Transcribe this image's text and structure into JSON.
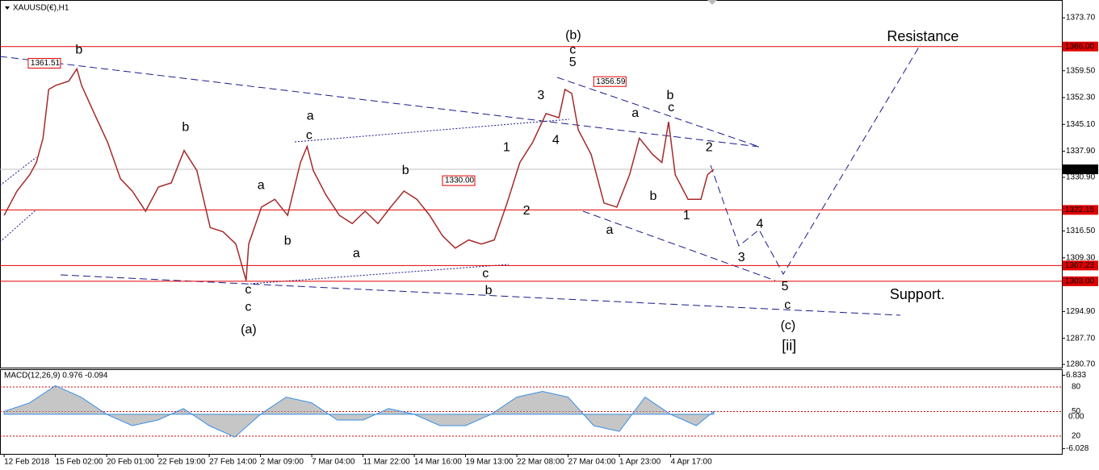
{
  "chart_data": [
    {
      "type": "line",
      "title": "XAUUSD(€),H1",
      "color": "#a52a2a",
      "xlim": [
        -0.08,
        20.63
      ],
      "ylim": [
        1280.05,
        1377.4
      ],
      "xticks": [
        {
          "value": 0,
          "label": "12 Feb 2018"
        },
        {
          "value": 1,
          "label": "15 Feb 02:00"
        },
        {
          "value": 2,
          "label": "20 Feb 01:00"
        },
        {
          "value": 3,
          "label": "22 Feb 19:00"
        },
        {
          "value": 4,
          "label": "27 Feb 14:00"
        },
        {
          "value": 5,
          "label": "2 Mar 09:00"
        },
        {
          "value": 6,
          "label": "7 Mar 04:00"
        },
        {
          "value": 7,
          "label": "11 Mar 22:00"
        },
        {
          "value": 8,
          "label": "14 Mar 16:00"
        },
        {
          "value": 9,
          "label": "19 Mar 13:00"
        },
        {
          "value": 10,
          "label": "22 Mar 08:00"
        },
        {
          "value": 11,
          "label": "27 Mar 04:00"
        },
        {
          "value": 12,
          "label": "1 Apr 23:00"
        },
        {
          "value": 13,
          "label": "4 Apr 17:00"
        }
      ],
      "yticks": [
        {
          "value": 1373.7,
          "label": "1373.70"
        },
        {
          "value": 1359.5,
          "label": "1359.50"
        },
        {
          "value": 1352.3,
          "label": "1352.30"
        },
        {
          "value": 1345.1,
          "label": "1345.10"
        },
        {
          "value": 1337.9,
          "label": "1337.90"
        },
        {
          "value": 1330.9,
          "label": "1330.90"
        },
        {
          "value": 1316.5,
          "label": "1316.50"
        },
        {
          "value": 1309.3,
          "label": "1309.30"
        },
        {
          "value": 1294.9,
          "label": "1294.90"
        },
        {
          "value": 1287.7,
          "label": "1287.70"
        },
        {
          "value": 1280.7,
          "label": "1280.70"
        }
      ],
      "x": [
        0,
        0.25,
        0.5,
        0.63,
        0.76,
        0.87,
        1.01,
        1.26,
        1.42,
        1.51,
        1.76,
        2.02,
        2.27,
        2.5,
        2.76,
        3.01,
        3.26,
        3.51,
        3.76,
        4.02,
        4.27,
        4.52,
        4.72,
        4.77,
        5.02,
        5.28,
        5.53,
        5.78,
        5.91,
        6.03,
        6.28,
        6.54,
        6.79,
        7.04,
        7.29,
        7.54,
        7.8,
        8.05,
        8.3,
        8.55,
        8.8,
        9.06,
        9.31,
        9.56,
        9.81,
        10.06,
        10.31,
        10.57,
        10.82,
        10.94,
        11.07,
        11.2,
        11.45,
        11.7,
        11.95,
        12.2,
        12.39,
        12.65,
        12.83,
        12.96,
        13.09,
        13.34,
        13.59,
        13.72,
        13.84
      ],
      "values": [
        1320.7,
        1327.2,
        1331.6,
        1334.9,
        1341.4,
        1354.5,
        1355.6,
        1356.7,
        1360.0,
        1355.6,
        1348.0,
        1340.3,
        1330.5,
        1327.2,
        1321.8,
        1328.3,
        1329.4,
        1338.1,
        1332.7,
        1317.4,
        1316.3,
        1313.0,
        1303.2,
        1313.0,
        1322.9,
        1325.0,
        1320.7,
        1334.9,
        1339.2,
        1332.7,
        1326.1,
        1320.7,
        1318.5,
        1321.8,
        1318.5,
        1322.9,
        1327.2,
        1325.0,
        1320.7,
        1315.2,
        1311.9,
        1314.1,
        1313.0,
        1314.1,
        1324.0,
        1334.9,
        1340.3,
        1348.0,
        1346.9,
        1354.5,
        1353.4,
        1343.6,
        1337.0,
        1324.0,
        1322.9,
        1331.6,
        1341.4,
        1337.0,
        1334.9,
        1345.8,
        1331.6,
        1325.0,
        1325.0,
        1331.6,
        1333.0
      ],
      "levels": [
        {
          "value": 1366.0,
          "label": "1366.00",
          "color": "#e00000"
        },
        {
          "value": 1333.04,
          "label": "1333.04",
          "color": "#000000"
        },
        {
          "value": 1322.15,
          "label": "1322.15",
          "color": "#e00000"
        },
        {
          "value": 1307.23,
          "label": "1307.23",
          "color": "#e00000"
        },
        {
          "value": 1303.0,
          "label": "1303.00",
          "color": "#e00000"
        }
      ],
      "price_markers": [
        {
          "x": 0.47,
          "value": 1361.51,
          "label": "1361.51"
        },
        {
          "x": 11.5,
          "value": 1356.59,
          "label": "1356.59"
        },
        {
          "x": 8.55,
          "value": 1330.0,
          "label": "1330.00"
        }
      ],
      "annotations": [
        {
          "text": "b",
          "x": 1.46,
          "y": 1365.0,
          "color": "#8b4513"
        },
        {
          "text": "(b)",
          "x": 11.1,
          "y": 1368.9,
          "color": "#1010c0"
        },
        {
          "text": "c",
          "x": 11.09,
          "y": 1365.0,
          "color": "#8b4513"
        },
        {
          "text": "5",
          "x": 11.09,
          "y": 1361.7,
          "color": "#e000e0"
        },
        {
          "text": "3",
          "x": 10.47,
          "y": 1352.8,
          "color": "#e000e0"
        },
        {
          "text": "4",
          "x": 10.76,
          "y": 1340.8,
          "color": "#e000e0"
        },
        {
          "text": "a",
          "x": 12.31,
          "y": 1348.0,
          "color": "#e000e0"
        },
        {
          "text": "b",
          "x": 12.99,
          "y": 1352.8,
          "color": "#8b4513"
        },
        {
          "text": "c",
          "x": 13.01,
          "y": 1349.5,
          "color": "#e000e0"
        },
        {
          "text": "2",
          "x": 13.75,
          "y": 1338.8,
          "color": "#e000e0"
        },
        {
          "text": "b",
          "x": 12.66,
          "y": 1325.7,
          "color": "#e000e0"
        },
        {
          "text": "1",
          "x": 13.31,
          "y": 1320.5,
          "color": "#e000e0"
        },
        {
          "text": "a",
          "x": 11.81,
          "y": 1316.7,
          "color": "#8b4513"
        },
        {
          "text": "1",
          "x": 9.8,
          "y": 1338.8,
          "color": "#e000e0"
        },
        {
          "text": "2",
          "x": 10.19,
          "y": 1321.8,
          "color": "#e000e0"
        },
        {
          "text": "b",
          "x": 3.54,
          "y": 1344.2,
          "color": "#e000e0"
        },
        {
          "text": "a",
          "x": 5.01,
          "y": 1328.7,
          "color": "#e000e0"
        },
        {
          "text": "b",
          "x": 5.53,
          "y": 1313.7,
          "color": "#e000e0"
        },
        {
          "text": "a",
          "x": 5.97,
          "y": 1347.3,
          "color": "#8b4513"
        },
        {
          "text": "c",
          "x": 5.95,
          "y": 1342.1,
          "color": "#e000e0"
        },
        {
          "text": "a",
          "x": 6.87,
          "y": 1310.4,
          "color": "#e000e0"
        },
        {
          "text": "b",
          "x": 7.83,
          "y": 1332.7,
          "color": "#e000e0"
        },
        {
          "text": "c",
          "x": 9.39,
          "y": 1305.0,
          "color": "#e000e0"
        },
        {
          "text": "b",
          "x": 9.45,
          "y": 1300.4,
          "color": "#8b4513"
        },
        {
          "text": "c",
          "x": 4.76,
          "y": 1300.6,
          "color": "#e000e0"
        },
        {
          "text": "c",
          "x": 4.76,
          "y": 1296.0,
          "color": "#8b4513"
        },
        {
          "text": "(a)",
          "x": 4.77,
          "y": 1289.9,
          "color": "#1010c0"
        },
        {
          "text": "4",
          "x": 14.74,
          "y": 1318.3,
          "color": "#e000e0"
        },
        {
          "text": "3",
          "x": 14.38,
          "y": 1309.3,
          "color": "#e000e0"
        },
        {
          "text": "5",
          "x": 15.23,
          "y": 1301.5,
          "color": "#e000e0"
        },
        {
          "text": "c",
          "x": 15.28,
          "y": 1296.5,
          "color": "#8b4513"
        },
        {
          "text": "(c)",
          "x": 15.29,
          "y": 1291.0,
          "color": "#1010c0"
        },
        {
          "text": "[ii]",
          "x": 15.31,
          "y": 1285.5,
          "color": "#2a7a10"
        },
        {
          "text": "Resistance",
          "x": 17.92,
          "y": 1368.5,
          "color": "#d00000"
        },
        {
          "text": "Support.",
          "x": 17.81,
          "y": 1299.3,
          "color": "#d00000"
        }
      ]
    },
    {
      "type": "area",
      "title": "MACD(12,26,9) 0.976 -0.094",
      "color": "#a0a0a0",
      "xlim": [
        -0.08,
        20.63
      ],
      "ylim": [
        -6.93,
        7.88
      ],
      "yticks": [
        6.833,
        -6.028
      ],
      "y2lim": [
        -1.6,
        101.6
      ],
      "y2ticks": [
        80,
        50,
        20
      ],
      "zero_label": "0.00",
      "x": [
        0,
        0.5,
        1,
        1.5,
        2,
        2.5,
        3,
        3.5,
        4,
        4.5,
        5,
        5.5,
        6,
        6.5,
        7,
        7.5,
        8,
        8.5,
        9,
        9.5,
        10,
        10.5,
        11,
        11.5,
        12,
        12.5,
        13,
        13.5,
        13.84
      ],
      "values": [
        0.5,
        2,
        5,
        3,
        0,
        -2,
        -1,
        1,
        -2,
        -4,
        0,
        3,
        2,
        -1,
        -1,
        1,
        0,
        -2,
        -2,
        0,
        3,
        4,
        3,
        -2,
        -3,
        3,
        0,
        -2,
        0.5
      ]
    }
  ]
}
